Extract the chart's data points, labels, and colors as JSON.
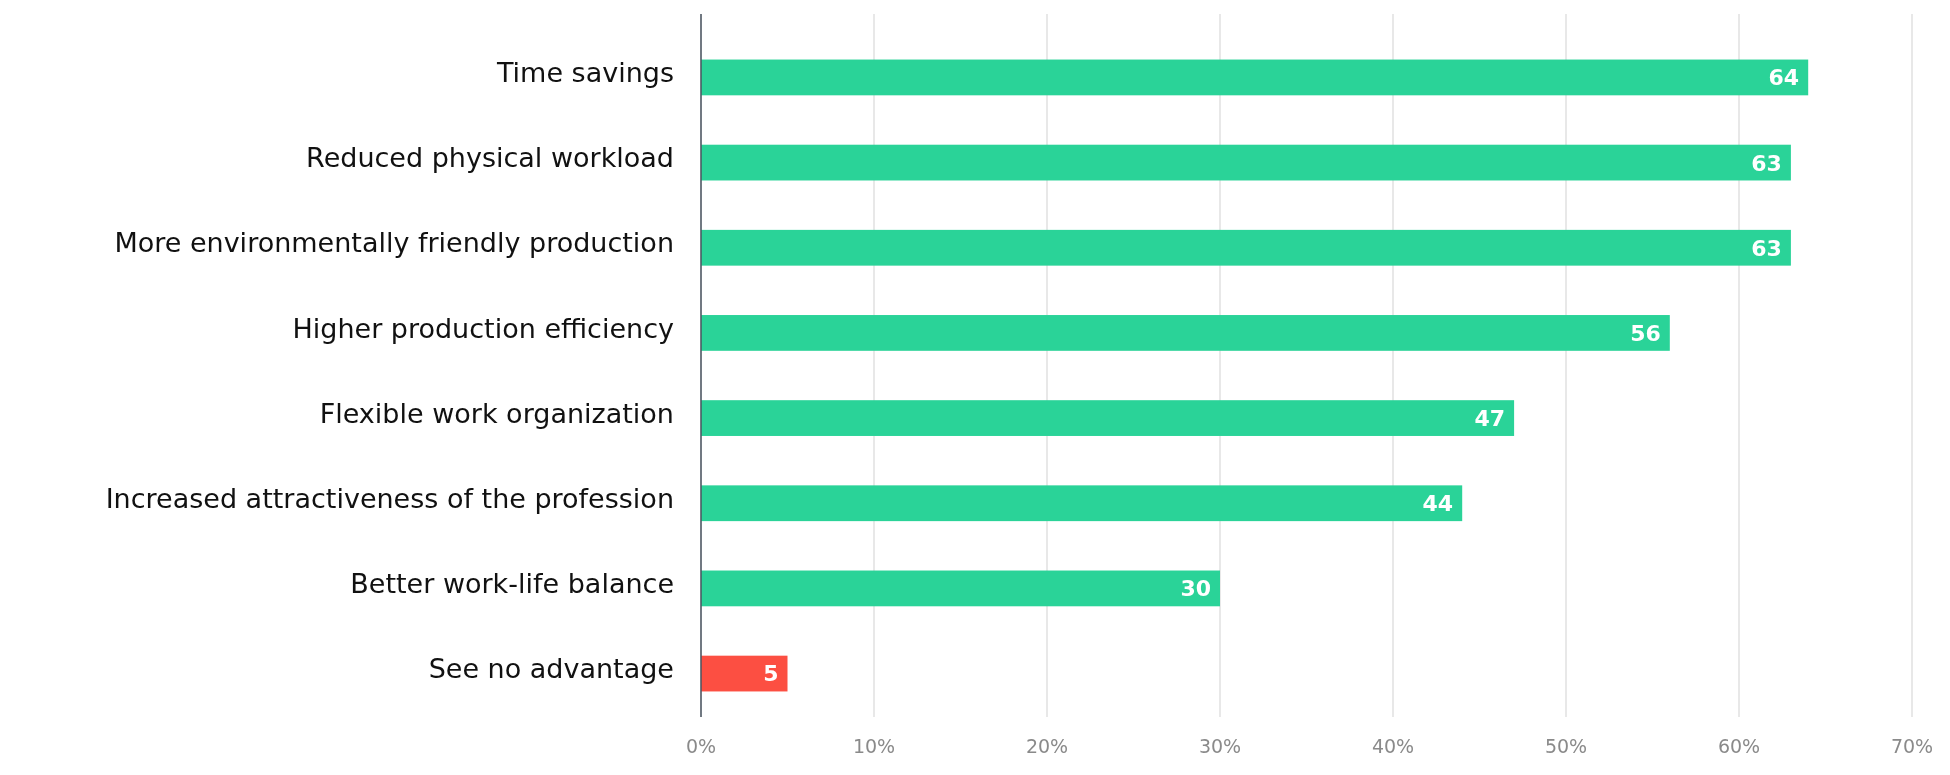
{
  "chart_data": {
    "type": "bar",
    "orientation": "horizontal",
    "categories": [
      "Time savings",
      "Reduced physical workload",
      "More environmentally friendly production",
      "Higher production efficiency",
      "Flexible work organization",
      "Increased attractiveness of the profession",
      "Better work-life balance",
      "See no advantage"
    ],
    "values": [
      64,
      63,
      63,
      56,
      47,
      44,
      30,
      5
    ],
    "colors": [
      "#2ad398",
      "#2ad398",
      "#2ad398",
      "#2ad398",
      "#2ad398",
      "#2ad398",
      "#2ad398",
      "#fc4f42"
    ],
    "xlim": [
      0,
      70
    ],
    "xticks": [
      {
        "value": 0,
        "label": "0%"
      },
      {
        "value": 10,
        "label": "10%"
      },
      {
        "value": 20,
        "label": "20%"
      },
      {
        "value": 30,
        "label": "30%"
      },
      {
        "value": 40,
        "label": "40%"
      },
      {
        "value": 50,
        "label": "50%"
      },
      {
        "value": 60,
        "label": "60%"
      },
      {
        "value": 70,
        "label": "70%"
      }
    ],
    "grid": "x",
    "data_labels": true
  }
}
